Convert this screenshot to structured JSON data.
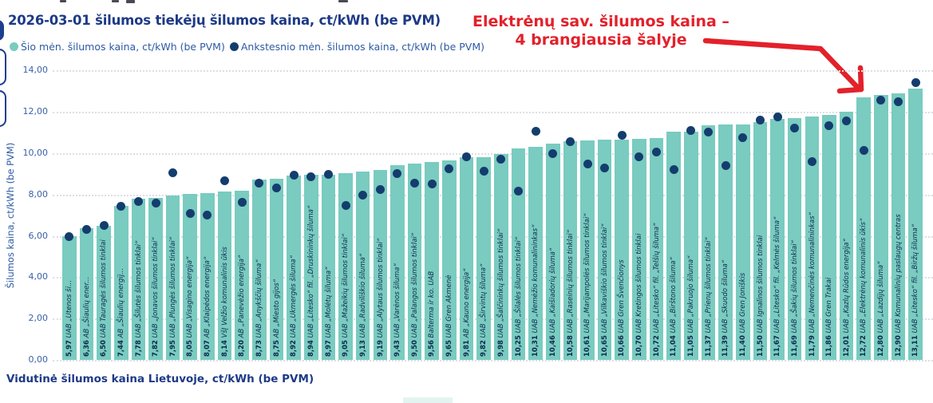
{
  "chart_data": {
    "type": "bar",
    "title": "2026-03-01 šilumos tiekėjų šilumos kaina, ct/kWh (be PVM)",
    "ylabel": "Šilumos kaina, ct/kWh (be PVM)",
    "ylim": [
      0,
      14
    ],
    "ytick_step": 2,
    "ytick_labels": [
      "0,00",
      "2,00",
      "4,00",
      "6,00",
      "8,00",
      "10,00",
      "12,00",
      "14,00"
    ],
    "grid": "horizontal-dotted",
    "legend_position": "top-left",
    "decimal_separator": ",",
    "categories": [
      "UAB „Utenos ši...",
      "AB „Šiaulių ener...",
      "UAB Tauragės šilumos tinklai",
      "AB „Šiaulių energij...",
      "UAB „Šilutės šilumos tinklai“",
      "UAB „Jonavos šilumos tinklai“",
      "UAB „Plungės šilumos tinklai“",
      "UAB „Visagino energija“",
      "AB „Klaipėdos energija“",
      "VšĮ Velžio komunalinis ūkis",
      "AB „Panevėžio energija“",
      "UAB „Anykščių šiluma“",
      "AB „Miesto gijos“",
      "UAB „Ukmergės šiluma“",
      "UAB „Litesko“ fil. „Druskininkų šiluma“",
      "UAB „Molėtų šiluma“",
      "UAB „Mažeikių šilumos tinklai“",
      "UAB „Radviliškio šiluma“",
      "UAB „Alytaus šilumos tinklai“",
      "UAB „Varėnos šiluma“",
      "UAB „Palangos šilumos tinklai“",
      "Balterma ir ko. UAB",
      "UAB Gren Akmenė",
      "AB „Kauno energija“",
      "UAB „Širvintų šiluma“",
      "UAB „Šalčininkų šilumos tinklai“",
      "UAB „Šilalės šilumos tinklai“",
      "UAB „Nemėžio komunalininkas“",
      "UAB „Kaišiadorių šiluma“",
      "UAB „Raseinių šilumos tinklai“",
      "UAB „Marijampolės šilumos tinklai“",
      "UAB „Vilkaviškio šilumos tinklai“",
      "UAB Gren Švenčionys",
      "UAB Kretingos šilumos tinklai",
      "UAB „Litesko“ fil. „Telšių šiluma“",
      "UAB „Birštono šiluma“",
      "UAB „Pakruojo šiluma“",
      "UAB „Prienų šilumos tinklai“",
      "UAB „Skuodo šiluma“",
      "UAB Gren Joniškis",
      "UAB Ignalinos šilumos tinklai",
      "UAB „Litesko“ fil. „Kelmės šiluma“",
      "UAB „Šakių šilumos tinklai“",
      "UAB „Nemenčinės komunalininkas“",
      "UAB Gren Trakai",
      "UAB „Kazlų Rūdos energija“",
      "UAB „Elektrėnų komunalinis ūkis“",
      "UAB „Lazdijų šiluma“",
      "UAB Komunalinių paslaugų centras",
      "UAB „Litesko“ fil. „Biržų šiluma“"
    ],
    "series": [
      {
        "name": "Šio mėn. šilumos kaina, ct/kWh (be PVM)",
        "type": "bar",
        "color": "#7acbc0",
        "values": [
          5.97,
          6.36,
          6.5,
          7.44,
          7.78,
          7.82,
          7.95,
          8.05,
          8.07,
          8.14,
          8.2,
          8.73,
          8.75,
          8.92,
          8.94,
          8.97,
          9.05,
          9.13,
          9.19,
          9.43,
          9.5,
          9.56,
          9.65,
          9.81,
          9.82,
          9.98,
          10.25,
          10.31,
          10.46,
          10.58,
          10.61,
          10.65,
          10.66,
          10.7,
          10.72,
          11.04,
          11.05,
          11.37,
          11.39,
          11.4,
          11.5,
          11.67,
          11.69,
          11.79,
          11.86,
          12.01,
          12.72,
          12.8,
          12.9,
          13.11
        ]
      },
      {
        "name": "Ankstesnio mėn. šilumos kaina, ct/kWh (be PVM)",
        "type": "scatter",
        "color": "#143d6e",
        "values": [
          5.95,
          6.3,
          6.5,
          7.45,
          7.65,
          7.6,
          9.05,
          7.1,
          7.0,
          8.65,
          7.62,
          8.55,
          8.33,
          8.95,
          8.85,
          8.97,
          7.49,
          7.97,
          8.24,
          9.01,
          8.56,
          8.51,
          9.26,
          9.84,
          9.13,
          9.72,
          8.18,
          11.05,
          10.0,
          10.55,
          9.48,
          9.3,
          10.85,
          9.83,
          10.05,
          9.2,
          11.1,
          11.03,
          9.42,
          10.75,
          11.6,
          11.77,
          11.2,
          9.6,
          11.32,
          11.57,
          10.15,
          12.58,
          12.48,
          13.4
        ]
      }
    ]
  },
  "annotation": {
    "line1": "Elektrėnų sav. šilumos kaina –",
    "line2": "4 brangiausia šalyje",
    "color": "#e3212b",
    "points_to": "UAB „Elektrėnų komunalinis ūkis“"
  },
  "footer": {
    "label": "Vidutinė šilumos kaina Lietuvoje, ct/kWh (be PVM)"
  }
}
